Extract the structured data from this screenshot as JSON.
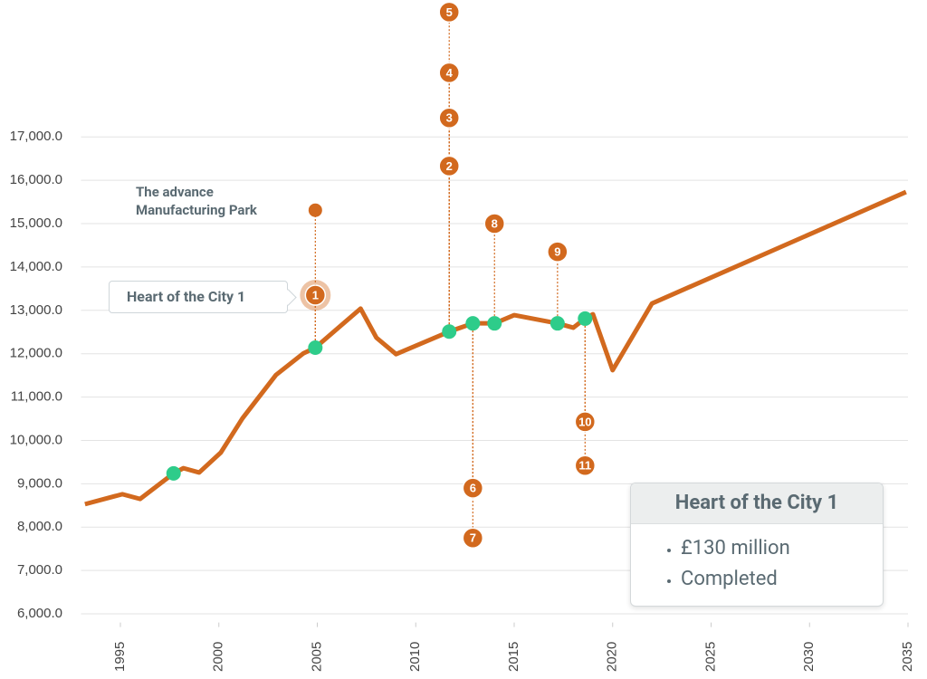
{
  "chart_data": {
    "type": "line",
    "color": "#d2691e",
    "x": [
      1993.2,
      1995.1,
      1996,
      1997.7,
      1998.2,
      1999,
      2000.1,
      2001.2,
      2002.9,
      2004.3,
      2004.9,
      2007.2,
      2008,
      2009,
      2011.7,
      2012.9,
      2014,
      2015,
      2017.2,
      2018,
      2018.6,
      2019,
      2020,
      2022,
      2034.9
    ],
    "values": [
      8530,
      8760,
      8650,
      9240,
      9360,
      9260,
      9720,
      10510,
      11510,
      12010,
      12140,
      13040,
      12370,
      11990,
      12510,
      12700,
      12700,
      12890,
      12700,
      12600,
      12810,
      12910,
      11620,
      13160,
      15730
    ],
    "events": {
      "color": "#2ecc8a",
      "x": [
        1997.7,
        2004.9,
        2011.7,
        2012.9,
        2014,
        2017.2,
        2018.6
      ],
      "values": [
        9240,
        12140,
        12510,
        12700,
        12700,
        12700,
        12810
      ]
    },
    "annotations": [
      {
        "label": "1",
        "x": 2004.9,
        "y": 13350
      },
      {
        "label": "2",
        "x": 2011.7,
        "y": 16330
      },
      {
        "label": "3",
        "x": 2011.7,
        "y": 17440
      },
      {
        "label": "4",
        "x": 2011.7,
        "y": 18480
      },
      {
        "label": "5",
        "x": 2011.7,
        "y": 19880
      },
      {
        "label": "6",
        "x": 2012.9,
        "y": 8900
      },
      {
        "label": "7",
        "x": 2012.9,
        "y": 7750
      },
      {
        "label": "8",
        "x": 2014,
        "y": 15000
      },
      {
        "label": "9",
        "x": 2017.2,
        "y": 14350
      },
      {
        "label": "10",
        "x": 2018.6,
        "y": 10430
      },
      {
        "label": "11",
        "x": 2018.6,
        "y": 9420
      }
    ],
    "site": {
      "label": "The advance Manufacturing Park",
      "x": 2004.9,
      "y": 15310
    },
    "callout": "Heart of the City 1",
    "tooltip": {
      "title": "Heart of the City 1",
      "items": [
        "£130 million",
        "Completed"
      ]
    },
    "xlim": [
      1993,
      2035
    ],
    "ylim": [
      5800,
      20000
    ],
    "xticks": [
      1995,
      2000,
      2005,
      2010,
      2015,
      2020,
      2025,
      2030,
      2035
    ],
    "yticks": [
      {
        "value": 6000,
        "label": "6,000.0"
      },
      {
        "value": 7000,
        "label": "7,000.0"
      },
      {
        "value": 8000,
        "label": "8,000.0"
      },
      {
        "value": 9000,
        "label": "9,000.0"
      },
      {
        "value": 10000,
        "label": "10,000.0"
      },
      {
        "value": 11000,
        "label": "11,000.0"
      },
      {
        "value": 12000,
        "label": "12,000.0"
      },
      {
        "value": 13000,
        "label": "13,000.0"
      },
      {
        "value": 14000,
        "label": "14,000.0"
      },
      {
        "value": 15000,
        "label": "15,000.0"
      },
      {
        "value": 16000,
        "label": "16,000.0"
      },
      {
        "value": 17000,
        "label": "17,000.0"
      }
    ],
    "grid": true
  }
}
